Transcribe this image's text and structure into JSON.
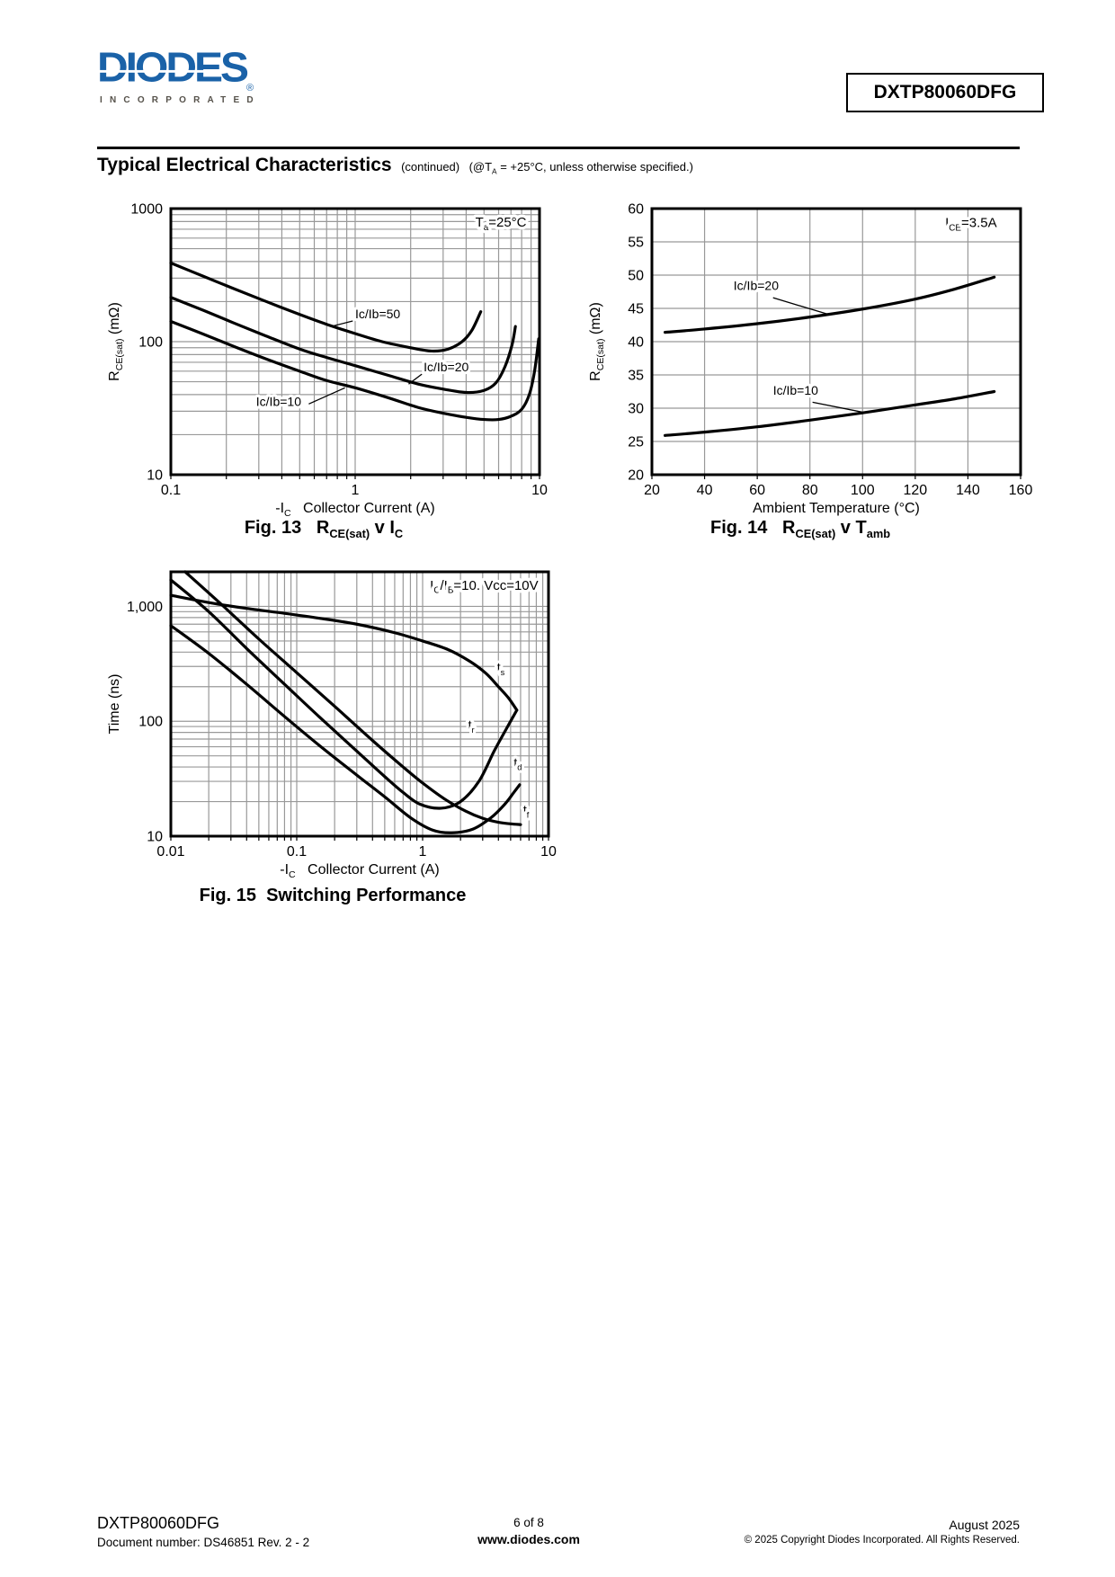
{
  "header": {
    "logo": {
      "name": "DIODES",
      "registered": "®",
      "sub": "INCORPORATED"
    },
    "part_number": "DXTP80060DFG",
    "section_title": "Typical Electrical Characteristics",
    "section_continued": "(continued)",
    "section_note": "(@T_{A} = +25°C, unless otherwise specified.)"
  },
  "chart_data": [
    {
      "id": "fig13",
      "type": "line",
      "title": "Fig. 13   R_{CE(sat)} v I_{C}",
      "xlabel": "-I_{C}   Collector Current (A)",
      "ylabel": "R_{CE(sat)} (mΩ)",
      "x_scale": "log",
      "y_scale": "log",
      "xlim": [
        0.1,
        10
      ],
      "ylim": [
        10,
        1000
      ],
      "x_ticks": [
        0.1,
        1,
        10
      ],
      "x_tick_labels": [
        "0.1",
        "1",
        "10"
      ],
      "y_ticks": [
        10,
        100,
        1000
      ],
      "y_tick_labels": [
        "10",
        "100",
        "1000"
      ],
      "grid": true,
      "annotation": {
        "text": "T_{a}=25°C",
        "x": 8.5,
        "y": 730,
        "anchor": "end"
      },
      "series": [
        {
          "name": "Ic/Ib=50",
          "points": [
            [
              0.1,
              390
            ],
            [
              0.15,
              310
            ],
            [
              0.22,
              250
            ],
            [
              0.33,
              200
            ],
            [
              0.5,
              160
            ],
            [
              0.7,
              135
            ],
            [
              1,
              115
            ],
            [
              1.4,
              100
            ],
            [
              2,
              90
            ],
            [
              2.6,
              85
            ],
            [
              3.2,
              88
            ],
            [
              3.8,
              100
            ],
            [
              4.3,
              122
            ],
            [
              4.8,
              168
            ]
          ]
        },
        {
          "name": "Ic/Ib=20",
          "points": [
            [
              0.1,
              215
            ],
            [
              0.15,
              172
            ],
            [
              0.22,
              138
            ],
            [
              0.33,
              110
            ],
            [
              0.5,
              88
            ],
            [
              0.7,
              76
            ],
            [
              1,
              66
            ],
            [
              1.5,
              56
            ],
            [
              2.2,
              48
            ],
            [
              3,
              44
            ],
            [
              4,
              41.5
            ],
            [
              5,
              43
            ],
            [
              5.8,
              49
            ],
            [
              6.5,
              65
            ],
            [
              7.1,
              95
            ],
            [
              7.4,
              130
            ]
          ]
        },
        {
          "name": "Ic/Ib=10",
          "points": [
            [
              0.1,
              142
            ],
            [
              0.15,
              114
            ],
            [
              0.22,
              92
            ],
            [
              0.33,
              74
            ],
            [
              0.5,
              60
            ],
            [
              0.7,
              51
            ],
            [
              1,
              45
            ],
            [
              1.5,
              38
            ],
            [
              2.2,
              32
            ],
            [
              3,
              29
            ],
            [
              4,
              27
            ],
            [
              5,
              26
            ],
            [
              6,
              26
            ],
            [
              7,
              27.5
            ],
            [
              8,
              31
            ],
            [
              8.8,
              40
            ],
            [
              9.4,
              60
            ],
            [
              9.9,
              105
            ]
          ]
        }
      ],
      "series_labels": [
        {
          "text": "Ic/Ib=50",
          "x": 1.0,
          "y": 150,
          "anchor": "start",
          "leader": [
            [
              0.97,
              143
            ],
            [
              0.74,
              130
            ]
          ]
        },
        {
          "text": "Ic/Ib=20",
          "x": 2.35,
          "y": 60,
          "anchor": "start",
          "leader": [
            [
              2.3,
              57
            ],
            [
              1.95,
              48
            ]
          ]
        },
        {
          "text": "Ic/Ib=10",
          "x": 0.29,
          "y": 33,
          "anchor": "start",
          "leader": [
            [
              0.56,
              34
            ],
            [
              0.88,
              45
            ]
          ]
        }
      ]
    },
    {
      "id": "fig14",
      "type": "line",
      "title": "Fig. 14   R_{CE(sat)} v T_{amb}",
      "xlabel": "Ambient Temperature (°C)",
      "ylabel": "R_{CE(sat)} (mΩ)",
      "x_scale": "linear",
      "y_scale": "linear",
      "xlim": [
        20,
        160
      ],
      "ylim": [
        20,
        60
      ],
      "x_ticks": [
        20,
        40,
        60,
        80,
        100,
        120,
        140,
        160
      ],
      "x_tick_labels": [
        "20",
        "40",
        "60",
        "80",
        "100",
        "120",
        "140",
        "160"
      ],
      "y_ticks": [
        20,
        25,
        30,
        35,
        40,
        45,
        50,
        55,
        60
      ],
      "y_tick_labels": [
        "20",
        "25",
        "30",
        "35",
        "40",
        "45",
        "50",
        "55",
        "60"
      ],
      "grid": true,
      "annotation": {
        "text": "I_{CE}=3.5A",
        "x": 151,
        "y": 57.2,
        "anchor": "end"
      },
      "series": [
        {
          "name": "Ic/Ib=20",
          "points": [
            [
              25,
              41.4
            ],
            [
              40,
              41.9
            ],
            [
              60,
              42.7
            ],
            [
              80,
              43.7
            ],
            [
              100,
              44.9
            ],
            [
              120,
              46.4
            ],
            [
              135,
              47.9
            ],
            [
              150,
              49.7
            ]
          ]
        },
        {
          "name": "Ic/Ib=10",
          "points": [
            [
              25,
              25.9
            ],
            [
              40,
              26.4
            ],
            [
              60,
              27.2
            ],
            [
              80,
              28.2
            ],
            [
              100,
              29.3
            ],
            [
              120,
              30.5
            ],
            [
              135,
              31.4
            ],
            [
              150,
              32.5
            ]
          ]
        }
      ],
      "series_labels": [
        {
          "text": "Ic/Ib=20",
          "x": 51,
          "y": 47.8,
          "anchor": "start",
          "leader": [
            [
              66,
              46.6
            ],
            [
              87,
              44.1
            ]
          ]
        },
        {
          "text": "Ic/Ib=10",
          "x": 66,
          "y": 32.0,
          "anchor": "start",
          "leader": [
            [
              81,
              30.9
            ],
            [
              100,
              29.4
            ]
          ]
        }
      ]
    },
    {
      "id": "fig15",
      "type": "line",
      "title": "Fig. 15  Switching Performance",
      "xlabel": "-I_{C}   Collector Current (A)",
      "ylabel": "Time (ns)",
      "x_scale": "log",
      "y_scale": "log",
      "xlim": [
        0.01,
        10
      ],
      "ylim": [
        10,
        2000
      ],
      "x_ticks": [
        0.01,
        0.1,
        1,
        10
      ],
      "x_tick_labels": [
        "0.01",
        "0.1",
        "1",
        "10"
      ],
      "y_ticks": [
        10,
        100,
        1000
      ],
      "y_tick_labels": [
        "10",
        "100",
        "1,000"
      ],
      "grid": true,
      "annotation": {
        "text": "I_{C}/I_{B}=10. Vcc=10V",
        "x": 8.3,
        "y": 1400,
        "anchor": "end"
      },
      "series": [
        {
          "name": "ts",
          "points": [
            [
              0.01,
              1250
            ],
            [
              0.02,
              1080
            ],
            [
              0.04,
              960
            ],
            [
              0.08,
              870
            ],
            [
              0.15,
              790
            ],
            [
              0.3,
              700
            ],
            [
              0.6,
              590
            ],
            [
              1,
              500
            ],
            [
              1.6,
              420
            ],
            [
              2.4,
              330
            ],
            [
              3.2,
              260
            ],
            [
              4,
              200
            ],
            [
              4.8,
              160
            ],
            [
              5.6,
              125
            ]
          ]
        },
        {
          "name": "tr",
          "points": [
            [
              0.01,
              1700
            ],
            [
              0.02,
              900
            ],
            [
              0.04,
              430
            ],
            [
              0.08,
              210
            ],
            [
              0.15,
              110
            ],
            [
              0.3,
              55
            ],
            [
              0.5,
              33
            ],
            [
              0.7,
              24
            ],
            [
              0.95,
              19
            ],
            [
              1.4,
              17.5
            ],
            [
              2,
              20
            ],
            [
              2.8,
              30
            ],
            [
              3.7,
              55
            ],
            [
              4.6,
              85
            ],
            [
              5.6,
              125
            ]
          ]
        },
        {
          "name": "td",
          "points": [
            [
              0.01,
              680
            ],
            [
              0.02,
              390
            ],
            [
              0.04,
              210
            ],
            [
              0.08,
              110
            ],
            [
              0.15,
              62
            ],
            [
              0.3,
              34
            ],
            [
              0.5,
              22
            ],
            [
              0.8,
              14.5
            ],
            [
              1.2,
              11.3
            ],
            [
              1.7,
              10.7
            ],
            [
              2.5,
              11.5
            ],
            [
              3.5,
              14.5
            ],
            [
              4.5,
              19
            ],
            [
              5.3,
              24
            ],
            [
              5.9,
              28
            ]
          ]
        },
        {
          "name": "tf",
          "points": [
            [
              0.013,
              2000
            ],
            [
              0.025,
              1050
            ],
            [
              0.05,
              520
            ],
            [
              0.1,
              265
            ],
            [
              0.2,
              135
            ],
            [
              0.4,
              68
            ],
            [
              0.7,
              40
            ],
            [
              1,
              29
            ],
            [
              1.5,
              21
            ],
            [
              2.2,
              16.5
            ],
            [
              3,
              14.3
            ],
            [
              4,
              13.2
            ],
            [
              5,
              12.8
            ],
            [
              6,
              12.6
            ]
          ]
        }
      ],
      "series_labels": [
        {
          "text": "t_{s}",
          "x": 3.9,
          "y": 270,
          "anchor": "start"
        },
        {
          "text": "t_{r}",
          "x": 2.3,
          "y": 85,
          "anchor": "start"
        },
        {
          "text": "t_{d}",
          "x": 5.3,
          "y": 40,
          "anchor": "start"
        },
        {
          "text": "t_{f}",
          "x": 6.3,
          "y": 15.5,
          "anchor": "start"
        }
      ]
    }
  ],
  "footer": {
    "part_number": "DXTP80060DFG",
    "document_number": "Document number: DS46851 Rev. 2 - 2",
    "page_indicator": "6 of 8",
    "website": "www.diodes.com",
    "date": "August 2025",
    "copyright": "© 2025 Copyright Diodes Incorporated. All Rights Reserved."
  },
  "style": {
    "logo_blue": "#1a62a8",
    "incorporated_color": "#55514a",
    "grid_color": "#999999",
    "curve_color": "#000000"
  }
}
